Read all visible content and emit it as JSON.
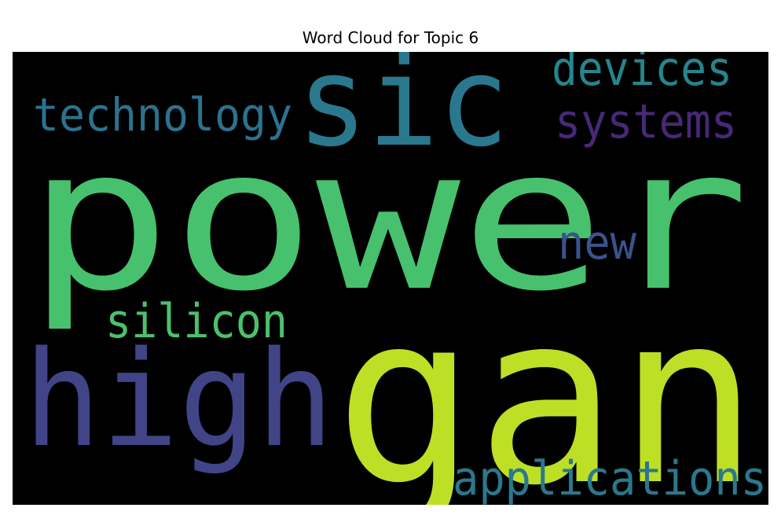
{
  "chart_data": {
    "type": "wordcloud",
    "title": "Word Cloud for Topic 6",
    "background": "#000000",
    "words": [
      {
        "text": "power",
        "color": "#47c16e"
      },
      {
        "text": "gan",
        "color": "#bddf26"
      },
      {
        "text": "sic",
        "color": "#2a788e"
      },
      {
        "text": "high",
        "color": "#414487"
      },
      {
        "text": "technology",
        "color": "#2c728e"
      },
      {
        "text": "devices",
        "color": "#25858e"
      },
      {
        "text": "systems",
        "color": "#482878"
      },
      {
        "text": "new",
        "color": "#3b528b"
      },
      {
        "text": "silicon",
        "color": "#4ac16d"
      },
      {
        "text": "applications",
        "color": "#2a788e"
      }
    ]
  }
}
